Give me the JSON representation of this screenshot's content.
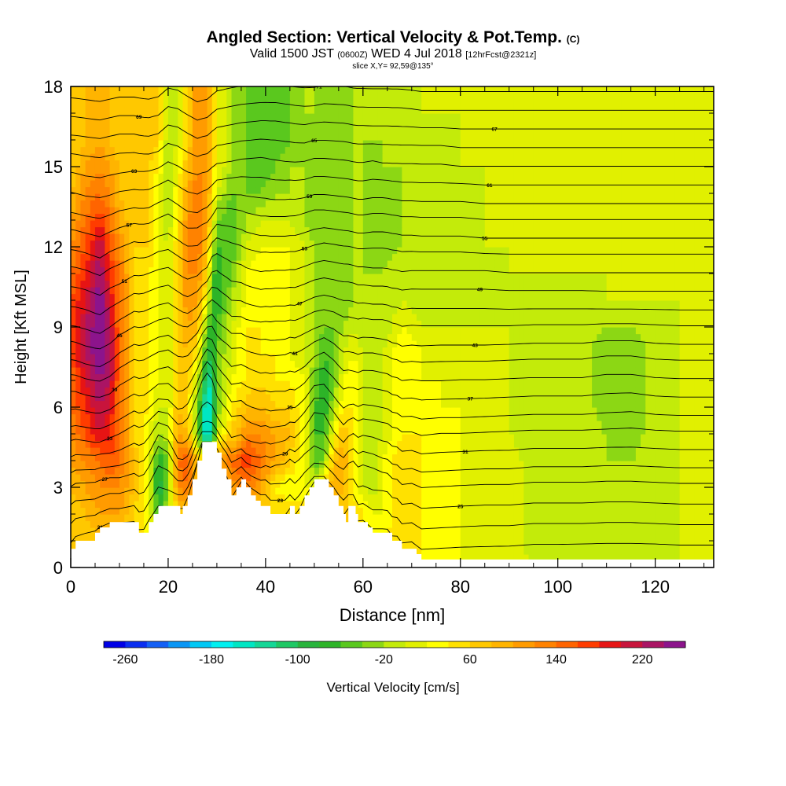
{
  "header": {
    "title": "Angled Section: Vertical Velocity & Pot.Temp.",
    "title_tag": "(C)",
    "valid_prefix": "Valid 1500 JST",
    "valid_zulu": "(0600Z)",
    "valid_date": "WED 4 Jul 2018",
    "forecast": "[12hrFcst@2321z]",
    "slice": "slice X,Y= 92,59@135°"
  },
  "chart_data": {
    "type": "heatmap",
    "xlabel": "Distance [nm]",
    "ylabel": "Height [Kft MSL]",
    "xlim": [
      0,
      132
    ],
    "ylim": [
      0,
      18
    ],
    "x_ticks": [
      0,
      20,
      40,
      60,
      80,
      100,
      120
    ],
    "y_ticks": [
      0,
      3,
      6,
      9,
      12,
      15,
      18
    ],
    "colorbar": {
      "label": "Vertical Velocity [cm/s]",
      "tick_labels": [
        -260,
        -180,
        -100,
        -20,
        60,
        140,
        220
      ],
      "min": -280,
      "max": 260,
      "step": 20,
      "colors": [
        "#0000e6",
        "#0a2ef0",
        "#1460f5",
        "#0a96f5",
        "#00c8f5",
        "#00f0f0",
        "#00e6c3",
        "#14d796",
        "#1ec864",
        "#28b43c",
        "#2db428",
        "#5ac81e",
        "#8cd714",
        "#c3eb0a",
        "#e1f000",
        "#ffff00",
        "#ffe100",
        "#ffc800",
        "#ffb400",
        "#ff9b00",
        "#ff8200",
        "#ff6400",
        "#ff3c00",
        "#e61414",
        "#c8143c",
        "#aa1464",
        "#8c148c"
      ]
    },
    "vertical_velocity_cm_s": {
      "x": [
        0,
        3,
        6,
        8,
        10,
        13,
        16,
        18,
        20,
        22,
        24,
        26,
        28,
        29,
        30,
        33,
        36,
        39,
        42,
        45,
        48,
        50,
        52,
        54,
        56,
        58,
        60,
        62,
        64,
        68,
        72,
        76,
        80,
        85,
        90,
        95,
        100,
        105,
        110,
        115,
        120,
        125,
        132
      ],
      "y": [
        0,
        1,
        2,
        3,
        4,
        5,
        6,
        7,
        8,
        9,
        10,
        11,
        12,
        13,
        14,
        15,
        16,
        17,
        18
      ],
      "values": [
        [
          60,
          60,
          60,
          60,
          60,
          60,
          60,
          60,
          60,
          60,
          60,
          60,
          60,
          60,
          60,
          60,
          60,
          60,
          60,
          60,
          60,
          60,
          60,
          60,
          60,
          60,
          60,
          60,
          60,
          60,
          40,
          30,
          20,
          20,
          10,
          0,
          0,
          -10,
          -10,
          -10,
          -10,
          0,
          0
        ],
        [
          60,
          60,
          80,
          80,
          80,
          60,
          40,
          20,
          40,
          60,
          60,
          60,
          60,
          60,
          60,
          60,
          60,
          60,
          60,
          60,
          60,
          60,
          60,
          60,
          60,
          60,
          40,
          40,
          40,
          60,
          40,
          30,
          20,
          10,
          10,
          -10,
          -10,
          -10,
          -20,
          -20,
          -10,
          0,
          0
        ],
        [
          60,
          80,
          100,
          100,
          100,
          60,
          20,
          -60,
          -20,
          60,
          60,
          60,
          60,
          60,
          60,
          60,
          80,
          60,
          60,
          60,
          60,
          60,
          60,
          60,
          60,
          60,
          40,
          20,
          20,
          60,
          40,
          30,
          20,
          10,
          10,
          -10,
          -10,
          -10,
          -20,
          -20,
          -10,
          0,
          0
        ],
        [
          80,
          100,
          120,
          120,
          120,
          80,
          20,
          -100,
          -40,
          120,
          140,
          60,
          60,
          60,
          60,
          100,
          140,
          100,
          40,
          20,
          20,
          20,
          60,
          100,
          80,
          40,
          0,
          -20,
          20,
          60,
          40,
          30,
          20,
          10,
          10,
          -10,
          -10,
          -10,
          -20,
          -20,
          -10,
          0,
          0
        ],
        [
          100,
          120,
          140,
          160,
          140,
          80,
          20,
          -80,
          -40,
          140,
          160,
          80,
          40,
          60,
          100,
          140,
          180,
          140,
          100,
          60,
          20,
          -60,
          -40,
          80,
          100,
          40,
          0,
          -20,
          20,
          60,
          40,
          30,
          20,
          10,
          10,
          -10,
          -10,
          -10,
          -20,
          -20,
          -10,
          0,
          0
        ],
        [
          120,
          160,
          200,
          180,
          140,
          60,
          20,
          -20,
          0,
          100,
          80,
          -40,
          -180,
          -120,
          0,
          60,
          120,
          120,
          100,
          80,
          20,
          -60,
          -60,
          20,
          80,
          40,
          0,
          -20,
          0,
          40,
          40,
          20,
          20,
          10,
          0,
          -10,
          -10,
          -10,
          -20,
          -30,
          -10,
          0,
          0
        ],
        [
          140,
          180,
          220,
          200,
          140,
          60,
          40,
          0,
          0,
          80,
          60,
          -40,
          -180,
          -140,
          -40,
          40,
          80,
          80,
          60,
          60,
          20,
          -60,
          -80,
          -20,
          40,
          40,
          0,
          -20,
          0,
          40,
          30,
          20,
          20,
          10,
          0,
          -10,
          -10,
          -10,
          -30,
          -40,
          -10,
          0,
          0
        ],
        [
          140,
          200,
          240,
          220,
          140,
          60,
          40,
          20,
          0,
          60,
          60,
          0,
          -140,
          -120,
          -40,
          20,
          40,
          60,
          40,
          40,
          20,
          -40,
          -80,
          -40,
          20,
          40,
          0,
          -20,
          0,
          40,
          20,
          20,
          10,
          10,
          0,
          -10,
          -10,
          -10,
          -40,
          -40,
          -10,
          0,
          0
        ],
        [
          160,
          220,
          260,
          220,
          140,
          60,
          40,
          20,
          0,
          60,
          80,
          40,
          -80,
          -100,
          -40,
          0,
          40,
          40,
          40,
          20,
          0,
          -20,
          -60,
          -40,
          0,
          20,
          0,
          -20,
          0,
          40,
          20,
          10,
          10,
          10,
          0,
          -10,
          -10,
          -10,
          -40,
          -40,
          -10,
          0,
          0
        ],
        [
          160,
          220,
          260,
          220,
          140,
          60,
          40,
          20,
          0,
          60,
          100,
          80,
          -40,
          -80,
          -60,
          0,
          40,
          40,
          20,
          20,
          0,
          -20,
          -40,
          -40,
          -20,
          0,
          -20,
          -20,
          -20,
          20,
          0,
          0,
          0,
          0,
          0,
          -10,
          -10,
          -10,
          -20,
          -20,
          -10,
          0,
          0
        ],
        [
          160,
          200,
          260,
          200,
          140,
          60,
          40,
          20,
          0,
          60,
          120,
          100,
          20,
          -60,
          -80,
          -20,
          20,
          40,
          20,
          20,
          0,
          -20,
          -40,
          -40,
          -40,
          -20,
          -20,
          -20,
          -20,
          0,
          -20,
          -20,
          -20,
          -20,
          -10,
          -10,
          -10,
          -10,
          0,
          0,
          0,
          0,
          0
        ],
        [
          140,
          180,
          240,
          180,
          140,
          60,
          40,
          20,
          0,
          60,
          120,
          120,
          60,
          -40,
          -80,
          -40,
          20,
          40,
          20,
          20,
          0,
          -20,
          -40,
          -40,
          -40,
          -20,
          -20,
          -20,
          -20,
          0,
          -20,
          -20,
          -20,
          -20,
          0,
          0,
          0,
          0,
          0,
          0,
          0,
          0,
          0
        ],
        [
          120,
          160,
          220,
          160,
          120,
          60,
          60,
          20,
          0,
          60,
          120,
          140,
          80,
          0,
          -60,
          -60,
          0,
          20,
          20,
          20,
          0,
          -20,
          -40,
          -40,
          -40,
          -20,
          -20,
          -40,
          -40,
          -20,
          -20,
          -20,
          -20,
          0,
          0,
          0,
          0,
          0,
          0,
          0,
          0,
          0,
          0
        ],
        [
          100,
          140,
          180,
          140,
          100,
          60,
          60,
          20,
          -20,
          40,
          120,
          140,
          100,
          40,
          -40,
          -60,
          -20,
          0,
          0,
          0,
          -20,
          -40,
          -40,
          -40,
          -40,
          -20,
          -20,
          -40,
          -40,
          -20,
          -20,
          -20,
          -20,
          0,
          0,
          0,
          0,
          0,
          0,
          0,
          0,
          0,
          0
        ],
        [
          80,
          120,
          140,
          120,
          80,
          60,
          60,
          20,
          -20,
          40,
          100,
          140,
          100,
          60,
          0,
          -40,
          -40,
          -40,
          -20,
          -20,
          -20,
          -40,
          -40,
          -40,
          -40,
          -20,
          -20,
          -40,
          -40,
          -20,
          -20,
          -20,
          -20,
          0,
          0,
          0,
          0,
          0,
          0,
          0,
          0,
          0,
          0
        ],
        [
          60,
          100,
          120,
          100,
          80,
          60,
          60,
          40,
          -20,
          20,
          80,
          120,
          100,
          60,
          20,
          -20,
          -40,
          -60,
          -40,
          -20,
          -20,
          -40,
          -40,
          -40,
          -40,
          -20,
          -20,
          -40,
          -20,
          -20,
          -20,
          -20,
          0,
          0,
          0,
          0,
          0,
          0,
          0,
          0,
          0,
          0,
          0
        ],
        [
          60,
          80,
          100,
          80,
          60,
          60,
          80,
          60,
          -20,
          0,
          60,
          120,
          100,
          60,
          20,
          -20,
          -40,
          -60,
          -60,
          -40,
          -20,
          -40,
          -40,
          -40,
          -40,
          -20,
          -20,
          -20,
          -20,
          -20,
          -20,
          -20,
          0,
          0,
          0,
          0,
          0,
          0,
          0,
          0,
          0,
          0,
          0
        ],
        [
          60,
          80,
          100,
          80,
          60,
          60,
          80,
          60,
          -20,
          0,
          60,
          120,
          100,
          60,
          20,
          -20,
          -40,
          -60,
          -60,
          -40,
          -20,
          -20,
          -40,
          -40,
          -40,
          -20,
          -20,
          -20,
          -20,
          -20,
          0,
          0,
          0,
          0,
          0,
          0,
          0,
          0,
          0,
          0,
          0,
          0,
          0
        ],
        [
          60,
          80,
          100,
          80,
          60,
          60,
          80,
          60,
          -20,
          0,
          60,
          120,
          100,
          60,
          20,
          -20,
          -40,
          -40,
          -60,
          -40,
          -20,
          -20,
          -40,
          -40,
          -40,
          -20,
          -20,
          -20,
          -20,
          -20,
          0,
          0,
          0,
          0,
          0,
          0,
          0,
          0,
          0,
          0,
          0,
          0,
          0
        ]
      ]
    },
    "terrain_kft": {
      "x": [
        0,
        1,
        5,
        6,
        8,
        9,
        12,
        13,
        14,
        15,
        16,
        17,
        18,
        19,
        20,
        21,
        22,
        22.5,
        23,
        24,
        25,
        26,
        27,
        28,
        29,
        30,
        31,
        32,
        33,
        34,
        35,
        36,
        37,
        38,
        39,
        40,
        41,
        42,
        43,
        44,
        45,
        46,
        47,
        48,
        49,
        50,
        51,
        52,
        53,
        54,
        55,
        56,
        56.5,
        57,
        58,
        58.5,
        59,
        60,
        61,
        62,
        63,
        64,
        65,
        66,
        67,
        68,
        69,
        70,
        71,
        72,
        132
      ],
      "heights": [
        0.7,
        1.0,
        1.3,
        1.5,
        1.7,
        1.7,
        1.7,
        1.7,
        1.3,
        1.3,
        1.7,
        2.0,
        2.3,
        2.3,
        2.3,
        2.3,
        2.3,
        2.0,
        2.3,
        2.7,
        3.3,
        4.0,
        4.7,
        4.7,
        4.7,
        4.3,
        3.7,
        3.3,
        2.7,
        3.0,
        3.3,
        3.0,
        2.7,
        2.5,
        2.3,
        2.3,
        2.0,
        2.0,
        2.0,
        2.0,
        2.3,
        2.0,
        2.3,
        2.7,
        3.0,
        3.3,
        3.3,
        3.3,
        3.0,
        2.7,
        2.3,
        2.0,
        1.7,
        2.3,
        2.3,
        2.0,
        1.7,
        1.7,
        1.5,
        1.3,
        1.3,
        1.3,
        1.3,
        1.0,
        1.0,
        0.7,
        0.7,
        0.7,
        0.5,
        0.3,
        0.3
      ]
    },
    "potential_temperature_contours": {
      "base_levels_kft": [
        0.6,
        1.4,
        2.2,
        3.0,
        3.6,
        4.3,
        5.0,
        5.6,
        6.3,
        7.0,
        7.7,
        8.3,
        9.0,
        9.6,
        10.3,
        11.0,
        11.7,
        12.3,
        13.0,
        13.6,
        14.3,
        15.0,
        15.7,
        16.4,
        17.1,
        17.8
      ],
      "label_values": [
        21,
        23,
        25,
        27,
        29,
        31,
        33,
        35,
        37,
        39,
        41,
        43,
        45,
        47,
        49,
        51,
        53,
        55,
        57,
        59,
        61,
        63,
        65,
        67,
        69,
        71
      ]
    }
  }
}
